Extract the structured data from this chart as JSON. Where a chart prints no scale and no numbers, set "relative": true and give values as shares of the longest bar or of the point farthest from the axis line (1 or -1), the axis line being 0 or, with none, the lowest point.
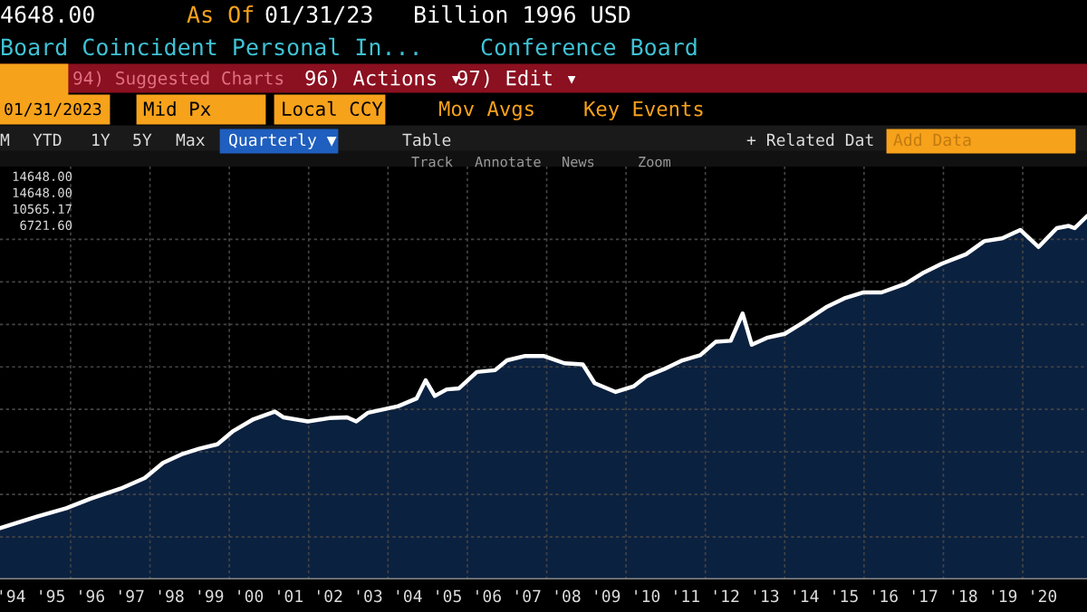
{
  "chart_data": {
    "type": "area",
    "relative": true,
    "grid": true,
    "x": [
      1993.72,
      1994.63,
      1995.39,
      1996.0,
      1996.76,
      1997.37,
      1997.83,
      1998.29,
      1998.74,
      1999.2,
      1999.58,
      2000.11,
      2000.65,
      2000.87,
      2001.48,
      2002.02,
      2002.47,
      2002.7,
      2003.0,
      2003.76,
      2004.22,
      2004.45,
      2004.68,
      2004.98,
      2005.29,
      2005.74,
      2006.2,
      2006.5,
      2006.96,
      2007.42,
      2007.95,
      2008.41,
      2008.71,
      2009.24,
      2009.7,
      2010.01,
      2010.46,
      2010.92,
      2011.37,
      2011.76,
      2012.14,
      2012.44,
      2012.67,
      2013.05,
      2013.5,
      2013.96,
      2014.57,
      2015.03,
      2015.49,
      2015.94,
      2016.55,
      2017.01,
      2017.46,
      2018.07,
      2018.53,
      2018.98,
      2019.44,
      2019.9,
      2020.36,
      2020.66,
      2020.81,
      2021.12
    ],
    "series": [
      {
        "color": "#ffffff",
        "values": [
          0.141,
          0.172,
          0.196,
          0.222,
          0.25,
          0.279,
          0.321,
          0.344,
          0.36,
          0.372,
          0.407,
          0.441,
          0.462,
          0.446,
          0.435,
          0.444,
          0.446,
          0.435,
          0.459,
          0.477,
          0.498,
          0.548,
          0.505,
          0.523,
          0.526,
          0.571,
          0.576,
          0.603,
          0.615,
          0.615,
          0.595,
          0.592,
          0.54,
          0.516,
          0.532,
          0.559,
          0.579,
          0.603,
          0.617,
          0.654,
          0.657,
          0.732,
          0.646,
          0.665,
          0.676,
          0.707,
          0.751,
          0.775,
          0.79,
          0.79,
          0.814,
          0.845,
          0.869,
          0.895,
          0.931,
          0.939,
          0.962,
          0.915,
          0.967,
          0.973,
          0.967,
          1.0
        ]
      }
    ],
    "xlim": [
      1993.72,
      2021.12
    ],
    "xticks": [
      {
        "value": 1994,
        "label": "'94"
      },
      {
        "value": 1995,
        "label": "'95"
      },
      {
        "value": 1995.5,
        "label": null
      },
      {
        "value": 1996,
        "label": "'96"
      },
      {
        "value": 1997,
        "label": "'97"
      },
      {
        "value": 1997.5,
        "label": null
      },
      {
        "value": 1998,
        "label": "'98"
      },
      {
        "value": 1999,
        "label": "'99"
      },
      {
        "value": 1999.5,
        "label": null
      },
      {
        "value": 2000,
        "label": "'00"
      },
      {
        "value": 2001,
        "label": "'01"
      },
      {
        "value": 2001.5,
        "label": null
      },
      {
        "value": 2002,
        "label": "'02"
      },
      {
        "value": 2003,
        "label": "'03"
      },
      {
        "value": 2003.5,
        "label": null
      },
      {
        "value": 2004,
        "label": "'04"
      },
      {
        "value": 2005,
        "label": "'05"
      },
      {
        "value": 2005.5,
        "label": null
      },
      {
        "value": 2006,
        "label": "'06"
      },
      {
        "value": 2007,
        "label": "'07"
      },
      {
        "value": 2007.5,
        "label": null
      },
      {
        "value": 2008,
        "label": "'08"
      },
      {
        "value": 2009,
        "label": "'09"
      },
      {
        "value": 2009.5,
        "label": null
      },
      {
        "value": 2010,
        "label": "'10"
      },
      {
        "value": 2011,
        "label": "'11"
      },
      {
        "value": 2011.5,
        "label": null
      },
      {
        "value": 2012,
        "label": "'12"
      },
      {
        "value": 2013,
        "label": "'13"
      },
      {
        "value": 2013.5,
        "label": null
      },
      {
        "value": 2014,
        "label": "'14"
      },
      {
        "value": 2015,
        "label": "'15"
      },
      {
        "value": 2015.5,
        "label": null
      },
      {
        "value": 2016,
        "label": "'16"
      },
      {
        "value": 2017,
        "label": "'17"
      },
      {
        "value": 2017.5,
        "label": null
      },
      {
        "value": 2018,
        "label": "'18"
      },
      {
        "value": 2019,
        "label": "'19"
      },
      {
        "value": 2019.5,
        "label": null
      },
      {
        "value": 2020,
        "label": "'20"
      }
    ],
    "annotations": [
      "4648.00",
      "As Of",
      "01/31/23",
      "Billion 1996 USD",
      "Board Coincident Personal In...",
      "Conference Board",
      "94) Suggested Charts",
      "96) Actions ▾",
      "97) Edit ▾",
      "01/31/2023",
      "Mid Px",
      "Local CCY",
      "Mov Avgs",
      "Key Events",
      "M",
      "YTD",
      "1Y",
      "5Y",
      "Max",
      "Quarterly ▼",
      "Table",
      "+ Related Dat",
      "Add Data",
      "Track",
      "Annotate",
      "News",
      "Zoom",
      "14648.00",
      "14648.00",
      "10565.17",
      "6721.60"
    ]
  }
}
